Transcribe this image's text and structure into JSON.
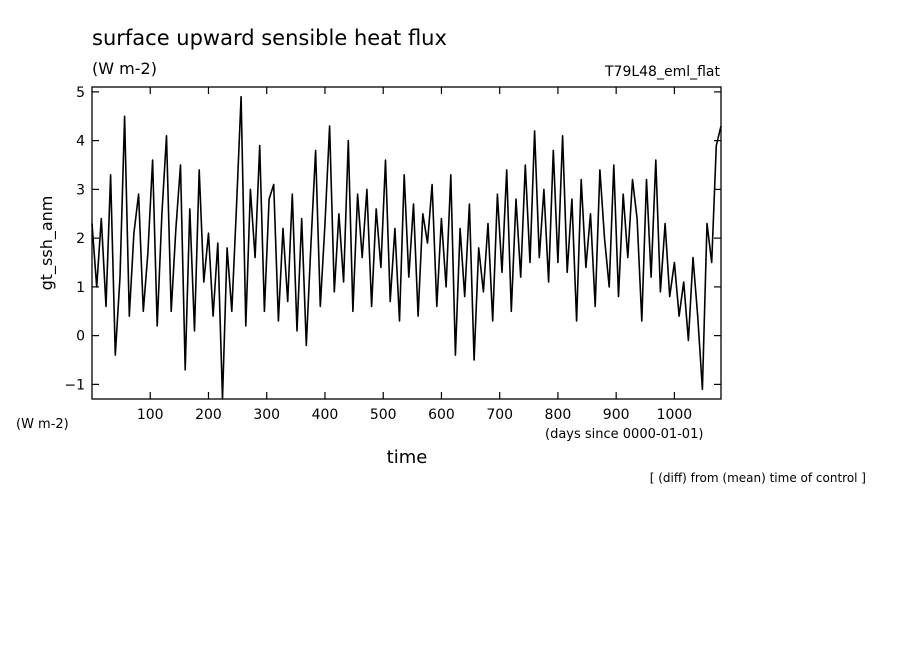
{
  "chart_data": {
    "type": "line",
    "title": "surface upward sensible heat flux",
    "units": "(W m-2)",
    "run_label": "T79L48_eml_flat",
    "ylabel": "gt_ssh_anm",
    "y_unit_label": "(W m-2)",
    "xlabel": "time",
    "x_unit_label": "(days since 0000-01-01)",
    "footnote": "[ (diff) from (mean) time of control ]",
    "xlim": [
      0,
      1080
    ],
    "ylim": [
      -1.3,
      5.1
    ],
    "x_ticks": [
      100,
      200,
      300,
      400,
      500,
      600,
      700,
      800,
      900,
      1000
    ],
    "y_ticks": [
      -1,
      0,
      1,
      2,
      3,
      4,
      5
    ],
    "grid": false,
    "line_color": "#000000",
    "series": [
      {
        "x": [
          0,
          8,
          16,
          24,
          32,
          40,
          48,
          56,
          64,
          72,
          80,
          88,
          96,
          104,
          112,
          120,
          128,
          136,
          144,
          152,
          160,
          168,
          176,
          184,
          192,
          200,
          208,
          216,
          224,
          232,
          240,
          248,
          256,
          264,
          272,
          280,
          288,
          296,
          304,
          312,
          320,
          328,
          336,
          344,
          352,
          360,
          368,
          376,
          384,
          392,
          400,
          408,
          416,
          424,
          432,
          440,
          448,
          456,
          464,
          472,
          480,
          488,
          496,
          504,
          512,
          520,
          528,
          536,
          544,
          552,
          560,
          568,
          576,
          584,
          592,
          600,
          608,
          616,
          624,
          632,
          640,
          648,
          656,
          664,
          672,
          680,
          688,
          696,
          704,
          712,
          720,
          728,
          736,
          744,
          752,
          760,
          768,
          776,
          784,
          792,
          800,
          808,
          816,
          824,
          832,
          840,
          848,
          856,
          864,
          872,
          880,
          888,
          896,
          904,
          912,
          920,
          928,
          936,
          944,
          952,
          960,
          968,
          976,
          984,
          992,
          1000,
          1008,
          1016,
          1024,
          1032,
          1040,
          1048,
          1056,
          1064,
          1072,
          1080
        ],
        "values": [
          2.3,
          1.0,
          2.4,
          0.6,
          3.3,
          -0.4,
          1.2,
          4.5,
          0.4,
          2.1,
          2.9,
          0.5,
          1.7,
          3.6,
          0.2,
          2.5,
          4.1,
          0.5,
          2.2,
          3.5,
          -0.7,
          2.6,
          0.1,
          3.4,
          1.1,
          2.1,
          0.4,
          1.9,
          -1.3,
          1.8,
          0.5,
          2.6,
          4.9,
          0.2,
          3.0,
          1.6,
          3.9,
          0.5,
          2.8,
          3.1,
          0.3,
          2.2,
          0.7,
          2.9,
          0.1,
          2.4,
          -0.2,
          1.9,
          3.8,
          0.6,
          2.3,
          4.3,
          0.9,
          2.5,
          1.1,
          4.0,
          0.5,
          2.9,
          1.6,
          3.0,
          0.6,
          2.6,
          1.4,
          3.6,
          0.7,
          2.2,
          0.3,
          3.3,
          1.2,
          2.7,
          0.4,
          2.5,
          1.9,
          3.1,
          0.6,
          2.4,
          1.0,
          3.3,
          -0.4,
          2.2,
          0.8,
          2.7,
          -0.5,
          1.8,
          0.9,
          2.3,
          0.3,
          2.9,
          1.3,
          3.4,
          0.5,
          2.8,
          1.2,
          3.5,
          1.5,
          4.2,
          1.6,
          3.0,
          1.1,
          3.8,
          1.5,
          4.1,
          1.3,
          2.8,
          0.3,
          3.2,
          1.4,
          2.5,
          0.6,
          3.4,
          2.0,
          1.0,
          3.5,
          0.8,
          2.9,
          1.6,
          3.2,
          2.4,
          0.3,
          3.2,
          1.2,
          3.6,
          0.9,
          2.3,
          0.8,
          1.5,
          0.4,
          1.1,
          -0.1,
          1.6,
          0.4,
          -1.1,
          2.3,
          1.5,
          3.9,
          4.3
        ]
      }
    ]
  }
}
